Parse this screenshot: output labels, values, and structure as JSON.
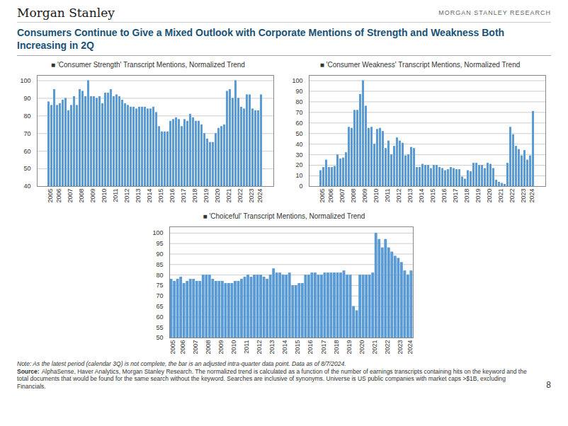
{
  "title": "Consumers Continue to Give a Mixed Outlook with Corporate Mentions of Strength and Weakness Both Increasing in 2Q",
  "annotations": [
    "Morgan Stanley",
    "MORGAN STANLEY RESEARCH",
    "Note: As the latest period (calendar 3Q) is not complete, the bar is an adjusted intra-quarter data point.  Data as of 8/7/2024.",
    "Source:",
    "AlphaSense, Haver Analytics, Morgan Stanley Research. The normalized trend is calculated as a function of the number of earnings transcripts containing hits on the keyword and the total documents that would be found for the same search without the keyword. Searches are inclusive of synonyms.  Universe is US public companies with market caps >$1B, excluding Financials.",
    "8"
  ],
  "chart_data": [
    {
      "type": "bar",
      "title": "■ 'Consumer Strength' Transcript Mentions, Normalized Trend",
      "categories": [
        "2005",
        null,
        null,
        "2006",
        null,
        null,
        null,
        "2007",
        null,
        null,
        null,
        "2008",
        null,
        null,
        null,
        "2009",
        null,
        null,
        null,
        "2010",
        null,
        null,
        null,
        "2011",
        null,
        null,
        null,
        "2012",
        null,
        null,
        null,
        "2013",
        null,
        null,
        null,
        "2014",
        null,
        null,
        null,
        "2015",
        null,
        null,
        null,
        "2016",
        null,
        null,
        null,
        "2017",
        null,
        null,
        null,
        "2018",
        null,
        null,
        null,
        "2019",
        null,
        null,
        null,
        "2020",
        null,
        null,
        null,
        "2021",
        null,
        null,
        null,
        "2022",
        null,
        null,
        null,
        "2023",
        null,
        null,
        "2024",
        null
      ],
      "values": [
        88,
        86,
        95,
        86,
        87,
        89,
        90,
        83,
        86,
        91,
        86,
        95,
        94,
        91,
        100,
        91,
        91,
        90,
        91,
        87,
        93,
        93,
        95,
        91,
        92,
        91,
        89,
        87,
        86,
        85,
        85,
        84,
        85,
        85,
        85,
        84,
        84,
        85,
        82,
        74,
        71,
        71,
        71,
        77,
        78,
        79,
        78,
        74,
        78,
        77,
        81,
        79,
        77,
        77,
        75,
        70,
        67,
        65,
        65,
        70,
        73,
        74,
        75,
        94,
        95,
        90,
        100,
        90,
        85,
        84,
        92,
        92,
        84,
        83,
        83,
        92
      ],
      "color": "#5B9BD5",
      "ylim": [
        40,
        103
      ],
      "yticks": [
        40,
        50,
        60,
        70,
        80,
        90,
        100
      ],
      "grid": true
    },
    {
      "type": "bar",
      "title": "■ 'Consumer Weakness' Transcript Mentions, Normalized Trend",
      "categories": [
        "2005",
        null,
        null,
        "2006",
        null,
        null,
        null,
        "2007",
        null,
        null,
        null,
        "2008",
        null,
        null,
        null,
        "2009",
        null,
        null,
        null,
        "2010",
        null,
        null,
        null,
        "2011",
        null,
        null,
        null,
        "2012",
        null,
        null,
        null,
        "2013",
        null,
        null,
        null,
        "2014",
        null,
        null,
        null,
        "2015",
        null,
        null,
        null,
        "2016",
        null,
        null,
        null,
        "2017",
        null,
        null,
        null,
        "2018",
        null,
        null,
        null,
        "2019",
        null,
        null,
        null,
        "2020",
        null,
        null,
        null,
        "2021",
        null,
        null,
        null,
        "2022",
        null,
        null,
        null,
        "2023",
        null,
        null,
        "2024",
        null
      ],
      "values": [
        15,
        18,
        25,
        18,
        18,
        19,
        30,
        26,
        27,
        32,
        56,
        55,
        72,
        72,
        87,
        100,
        76,
        55,
        56,
        40,
        54,
        55,
        52,
        36,
        43,
        30,
        38,
        46,
        43,
        41,
        29,
        30,
        37,
        36,
        18,
        18,
        21,
        20,
        20,
        17,
        20,
        20,
        18,
        17,
        15,
        16,
        18,
        17,
        16,
        16,
        9,
        7,
        15,
        14,
        22,
        22,
        20,
        20,
        17,
        22,
        21,
        17,
        6,
        4,
        3,
        2,
        22,
        56,
        49,
        38,
        35,
        29,
        34,
        25,
        29,
        71
      ],
      "color": "#5B9BD5",
      "ylim": [
        0,
        105
      ],
      "yticks": [
        0,
        10,
        20,
        30,
        40,
        50,
        60,
        70,
        80,
        90,
        100
      ],
      "grid": true
    },
    {
      "type": "bar",
      "title": "■ 'Choiceful' Transcript Mentions, Normalized Trend",
      "categories": [
        "2005",
        null,
        null,
        "2006",
        null,
        null,
        null,
        "2007",
        null,
        null,
        null,
        "2008",
        null,
        null,
        null,
        "2009",
        null,
        null,
        null,
        "2010",
        null,
        null,
        null,
        "2011",
        null,
        null,
        null,
        "2012",
        null,
        null,
        null,
        "2013",
        null,
        null,
        null,
        "2014",
        null,
        null,
        null,
        "2015",
        null,
        null,
        null,
        "2016",
        null,
        null,
        null,
        "2017",
        null,
        null,
        null,
        "2018",
        null,
        null,
        null,
        "2019",
        null,
        null,
        null,
        "2020",
        null,
        null,
        null,
        "2021",
        null,
        null,
        null,
        "2022",
        null,
        null,
        null,
        "2023",
        null,
        null,
        "2024",
        null
      ],
      "values": [
        78,
        77,
        78,
        79,
        76,
        77,
        78,
        78,
        77,
        77,
        80,
        80,
        80,
        78,
        77,
        77,
        77,
        76,
        76,
        76,
        77,
        77,
        78,
        79,
        80,
        79,
        80,
        80,
        80,
        79,
        78,
        80,
        83,
        81,
        81,
        80,
        80,
        81,
        75,
        75,
        76,
        76,
        80,
        80,
        81,
        81,
        80,
        80,
        81,
        81,
        81,
        81,
        81,
        81,
        82,
        80,
        80,
        65,
        63,
        80,
        80,
        80,
        80,
        81,
        100,
        97,
        93,
        97,
        93,
        91,
        89,
        88,
        86,
        82,
        80,
        82
      ],
      "color": "#5B9BD5",
      "ylim": [
        50,
        103
      ],
      "yticks": [
        50,
        55,
        60,
        65,
        70,
        75,
        80,
        85,
        90,
        95,
        100
      ],
      "grid": true
    }
  ]
}
